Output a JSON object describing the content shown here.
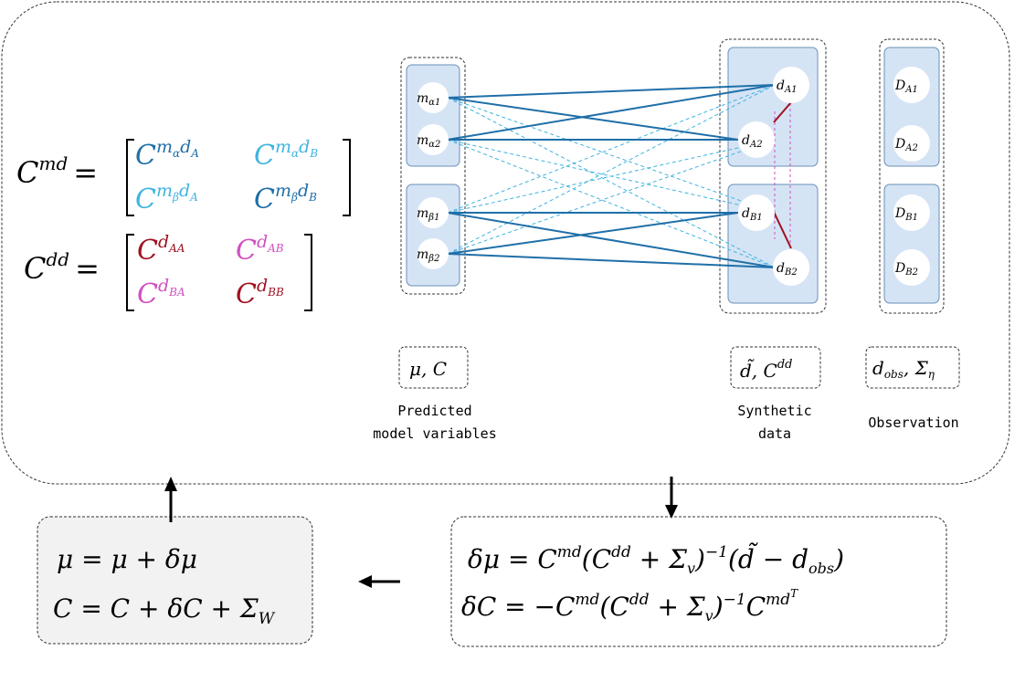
{
  "colors": {
    "dark_blue": "#1f6fa8",
    "light_blue": "#3fb4e0",
    "dark_red": "#a01020",
    "magenta": "#d050c0",
    "box_fill": "#d5e4f5",
    "gray_box_fill": "#f2f2f2"
  },
  "matrices": {
    "cmd": {
      "lhs_base": "C",
      "lhs_sup": "md",
      "cells": [
        {
          "base": "C",
          "sup": "m",
          "sup_sub": "α",
          "sup2": "d",
          "sup2_sub": "A"
        },
        {
          "base": "C",
          "sup": "m",
          "sup_sub": "α",
          "sup2": "d",
          "sup2_sub": "B"
        },
        {
          "base": "C",
          "sup": "m",
          "sup_sub": "β",
          "sup2": "d",
          "sup2_sub": "A"
        },
        {
          "base": "C",
          "sup": "m",
          "sup_sub": "β",
          "sup2": "d",
          "sup2_sub": "B"
        }
      ]
    },
    "cdd": {
      "lhs_base": "C",
      "lhs_sup": "dd",
      "cells": [
        {
          "base": "C",
          "sup": "d",
          "sup_sub": "AA"
        },
        {
          "base": "C",
          "sup": "d",
          "sup_sub": "AB"
        },
        {
          "base": "C",
          "sup": "d",
          "sup_sub": "BA"
        },
        {
          "base": "C",
          "sup": "d",
          "sup_sub": "BB"
        }
      ]
    }
  },
  "nodes": {
    "model": [
      {
        "base": "m",
        "sub": "α1"
      },
      {
        "base": "m",
        "sub": "α2"
      },
      {
        "base": "m",
        "sub": "β1"
      },
      {
        "base": "m",
        "sub": "β2"
      }
    ],
    "synthetic": [
      {
        "base": "d",
        "sub": "A1"
      },
      {
        "base": "d",
        "sub": "A2"
      },
      {
        "base": "d",
        "sub": "B1"
      },
      {
        "base": "d",
        "sub": "B2"
      }
    ],
    "observation": [
      {
        "base": "D",
        "sub": "A1"
      },
      {
        "base": "D",
        "sub": "A2"
      },
      {
        "base": "D",
        "sub": "B1"
      },
      {
        "base": "D",
        "sub": "B2"
      }
    ]
  },
  "tags": {
    "model": {
      "text": "μ, C"
    },
    "synthetic": {
      "base": "d̃, C",
      "sup": "dd"
    },
    "observation": {
      "base": "d",
      "base_sub": "obs",
      "mid": ", Σ",
      "mid_sub": "η"
    }
  },
  "captions": {
    "model_line1": "Predicted",
    "model_line2": "model variables",
    "synthetic_line1": "Synthetic",
    "synthetic_line2": "data",
    "observation": "Observation"
  },
  "update_equations": {
    "mu_line": {
      "p1": "δμ = C",
      "s1": "md",
      "p2": "(C",
      "s2": "dd",
      "p3": " + Σ",
      "sub3": "v",
      "p4": ")",
      "s4": "−1",
      "p5": "(d̃ − d",
      "sub5": "obs",
      "p6": ")"
    },
    "c_line": {
      "p1": "δC = −C",
      "s1": "md",
      "p2": "(C",
      "s2": "dd",
      "p3": " + Σ",
      "sub3": "v",
      "p4": ")",
      "s4": "−1",
      "p5": "C",
      "s5": "md",
      "s5b": "T"
    }
  },
  "assign_equations": {
    "mu_line": "μ = μ + δμ",
    "c_line": {
      "p1": "C = C + δC + Σ",
      "sub1": "W"
    }
  }
}
